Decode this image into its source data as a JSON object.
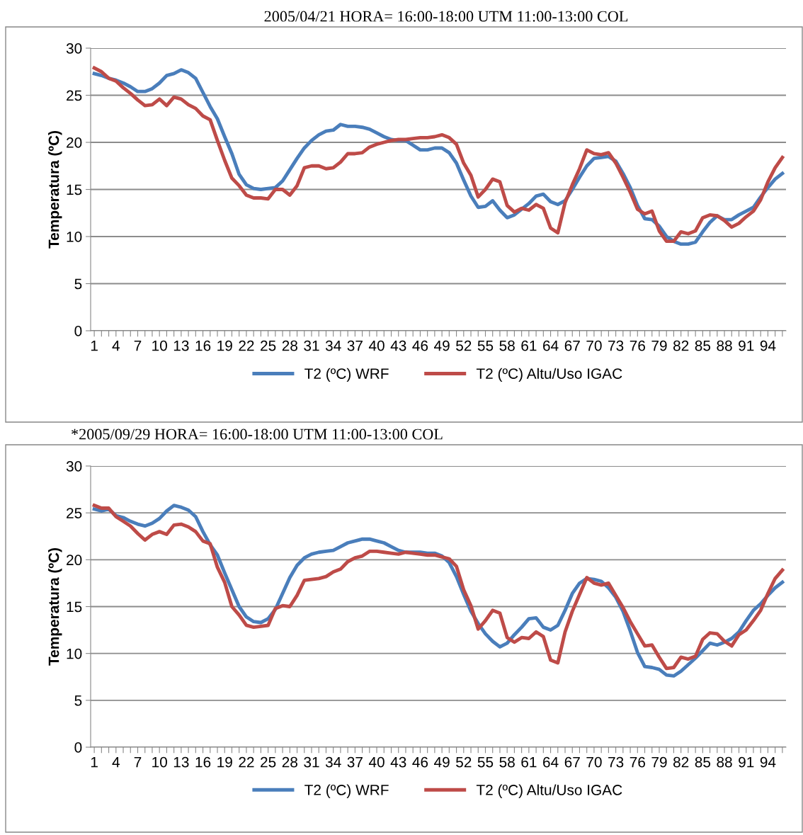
{
  "chart_data": [
    {
      "type": "line",
      "title": "2005/04/21 HORA= 16:00-18:00 UTM 11:00-13:00 COL",
      "ylabel": "Temperatura (ºC)",
      "categories": [
        "1",
        null,
        null,
        "4",
        null,
        null,
        "7",
        null,
        null,
        "10",
        null,
        null,
        "13",
        null,
        null,
        "16",
        null,
        null,
        "19",
        null,
        null,
        "22",
        null,
        null,
        "25",
        null,
        null,
        "28",
        null,
        null,
        "31",
        null,
        null,
        "34",
        null,
        null,
        "37",
        null,
        null,
        "40",
        null,
        null,
        "43",
        null,
        null,
        "46",
        null,
        null,
        "49",
        null,
        null,
        "52",
        null,
        null,
        "55",
        null,
        null,
        "58",
        null,
        null,
        "61",
        null,
        null,
        "64",
        null,
        null,
        "67",
        null,
        null,
        "70",
        null,
        null,
        "73",
        null,
        null,
        "76",
        null,
        null,
        "79",
        null,
        null,
        "82",
        null,
        null,
        "85",
        null,
        null,
        "88",
        null,
        null,
        "91",
        null,
        null,
        "94",
        null,
        null
      ],
      "series": [
        {
          "name": "T2 (ºC) WRF",
          "color": "#4a7ebb",
          "values": [
            27.3,
            27.1,
            26.8,
            26.6,
            26.3,
            25.9,
            25.4,
            25.4,
            25.7,
            26.3,
            27.1,
            27.3,
            27.7,
            27.4,
            26.8,
            25.3,
            23.8,
            22.5,
            20.6,
            18.8,
            16.6,
            15.5,
            15.1,
            15.0,
            15.1,
            15.2,
            15.9,
            17.1,
            18.3,
            19.4,
            20.2,
            20.8,
            21.2,
            21.3,
            21.9,
            21.7,
            21.7,
            21.6,
            21.4,
            21.0,
            20.6,
            20.3,
            20.2,
            20.2,
            19.7,
            19.2,
            19.2,
            19.4,
            19.4,
            18.9,
            17.8,
            16.0,
            14.3,
            13.1,
            13.2,
            13.8,
            12.8,
            12.0,
            12.3,
            12.9,
            13.5,
            14.3,
            14.5,
            13.7,
            13.4,
            13.8,
            15.0,
            16.3,
            17.5,
            18.3,
            18.4,
            18.5,
            18.0,
            16.7,
            15.2,
            13.3,
            11.9,
            11.8,
            11.1,
            10.0,
            9.5,
            9.2,
            9.2,
            9.4,
            10.5,
            11.5,
            12.2,
            11.8,
            11.8,
            12.3,
            12.7,
            13.1,
            14.2,
            15.2,
            16.1,
            16.7
          ]
        },
        {
          "name": "T2 (ºC) Altu/Uso IGAC",
          "color": "#be4b48",
          "values": [
            27.9,
            27.5,
            26.8,
            26.5,
            25.8,
            25.2,
            24.5,
            23.9,
            24.0,
            24.6,
            23.9,
            24.8,
            24.6,
            24.0,
            23.6,
            22.8,
            22.4,
            20.2,
            18.1,
            16.2,
            15.4,
            14.4,
            14.1,
            14.1,
            14.0,
            15.0,
            15.0,
            14.4,
            15.4,
            17.3,
            17.5,
            17.5,
            17.2,
            17.3,
            17.9,
            18.8,
            18.8,
            18.9,
            19.5,
            19.8,
            20.0,
            20.2,
            20.3,
            20.3,
            20.4,
            20.5,
            20.5,
            20.6,
            20.8,
            20.5,
            19.8,
            17.8,
            16.5,
            14.2,
            15.0,
            16.1,
            15.8,
            13.3,
            12.6,
            13.0,
            12.8,
            13.4,
            13.0,
            10.9,
            10.4,
            13.6,
            15.5,
            17.2,
            19.2,
            18.8,
            18.7,
            18.9,
            17.8,
            16.3,
            14.7,
            12.9,
            12.4,
            12.7,
            10.6,
            9.5,
            9.5,
            10.5,
            10.3,
            10.6,
            12.0,
            12.3,
            12.2,
            11.7,
            11.0,
            11.4,
            12.1,
            12.7,
            13.9,
            15.8,
            17.3,
            18.4
          ]
        }
      ],
      "ylim": [
        0,
        30
      ],
      "yticks": [
        0,
        5,
        10,
        15,
        20,
        25,
        30
      ],
      "grid": "y",
      "legend": "bottom",
      "marker": "none",
      "line_style": "solid"
    },
    {
      "type": "line",
      "title": "*2005/09/29 HORA= 16:00-18:00 UTM 11:00-13:00 COL",
      "ylabel": "Temperatura (ºC)",
      "categories": [
        "1",
        null,
        null,
        "4",
        null,
        null,
        "7",
        null,
        null,
        "10",
        null,
        null,
        "13",
        null,
        null,
        "16",
        null,
        null,
        "19",
        null,
        null,
        "22",
        null,
        null,
        "25",
        null,
        null,
        "28",
        null,
        null,
        "31",
        null,
        null,
        "34",
        null,
        null,
        "37",
        null,
        null,
        "40",
        null,
        null,
        "43",
        null,
        null,
        "46",
        null,
        null,
        "49",
        null,
        null,
        "52",
        null,
        null,
        "55",
        null,
        null,
        "58",
        null,
        null,
        "61",
        null,
        null,
        "64",
        null,
        null,
        "67",
        null,
        null,
        "70",
        null,
        null,
        "73",
        null,
        null,
        "76",
        null,
        null,
        "79",
        null,
        null,
        "82",
        null,
        null,
        "85",
        null,
        null,
        "88",
        null,
        null,
        "91",
        null,
        null,
        "94",
        null,
        null
      ],
      "series": [
        {
          "name": "T2 (ºC) WRF",
          "color": "#4a7ebb",
          "values": [
            25.4,
            25.2,
            25.4,
            24.7,
            24.5,
            24.1,
            23.8,
            23.6,
            23.9,
            24.4,
            25.2,
            25.8,
            25.6,
            25.3,
            24.6,
            23.0,
            21.6,
            20.5,
            18.6,
            16.8,
            15.0,
            13.9,
            13.4,
            13.3,
            13.7,
            14.7,
            16.4,
            18.1,
            19.4,
            20.2,
            20.6,
            20.8,
            20.9,
            21.0,
            21.4,
            21.8,
            22.0,
            22.2,
            22.2,
            22.0,
            21.8,
            21.4,
            21.0,
            20.8,
            20.8,
            20.8,
            20.7,
            20.7,
            20.4,
            19.7,
            18.2,
            16.3,
            14.5,
            13.2,
            12.1,
            11.3,
            10.7,
            11.1,
            12.0,
            12.8,
            13.7,
            13.8,
            12.8,
            12.5,
            13.0,
            14.6,
            16.4,
            17.5,
            18.0,
            17.9,
            17.7,
            17.0,
            16.0,
            14.5,
            12.4,
            10.1,
            8.6,
            8.5,
            8.3,
            7.7,
            7.6,
            8.1,
            8.8,
            9.5,
            10.3,
            11.1,
            10.9,
            11.2,
            11.6,
            12.3,
            13.5,
            14.6,
            15.3,
            16.2,
            17.0,
            17.6
          ]
        },
        {
          "name": "T2 (ºC) Altu/Uso IGAC",
          "color": "#be4b48",
          "values": [
            25.8,
            25.5,
            25.5,
            24.6,
            24.1,
            23.6,
            22.8,
            22.1,
            22.7,
            23.0,
            22.7,
            23.7,
            23.8,
            23.5,
            23.0,
            22.0,
            21.7,
            19.2,
            17.6,
            15.0,
            14.1,
            13.0,
            12.8,
            12.9,
            13.0,
            14.8,
            15.1,
            15.0,
            16.2,
            17.8,
            17.9,
            18.0,
            18.2,
            18.7,
            19.0,
            19.8,
            20.2,
            20.4,
            20.9,
            20.9,
            20.8,
            20.7,
            20.6,
            20.8,
            20.7,
            20.6,
            20.5,
            20.5,
            20.3,
            20.1,
            19.3,
            16.8,
            15.1,
            12.6,
            13.5,
            14.6,
            14.3,
            11.7,
            11.2,
            11.7,
            11.6,
            12.3,
            11.8,
            9.3,
            9.0,
            12.3,
            14.5,
            16.3,
            18.1,
            17.5,
            17.3,
            17.5,
            16.2,
            14.9,
            13.4,
            12.1,
            10.8,
            10.9,
            9.6,
            8.4,
            8.5,
            9.6,
            9.4,
            9.7,
            11.5,
            12.2,
            12.1,
            11.3,
            10.8,
            12.0,
            12.5,
            13.5,
            14.6,
            16.4,
            18.0,
            18.9
          ]
        }
      ],
      "ylim": [
        0,
        30
      ],
      "yticks": [
        0,
        5,
        10,
        15,
        20,
        25,
        30
      ],
      "grid": "y",
      "legend": "bottom",
      "marker": "none",
      "line_style": "solid"
    }
  ]
}
